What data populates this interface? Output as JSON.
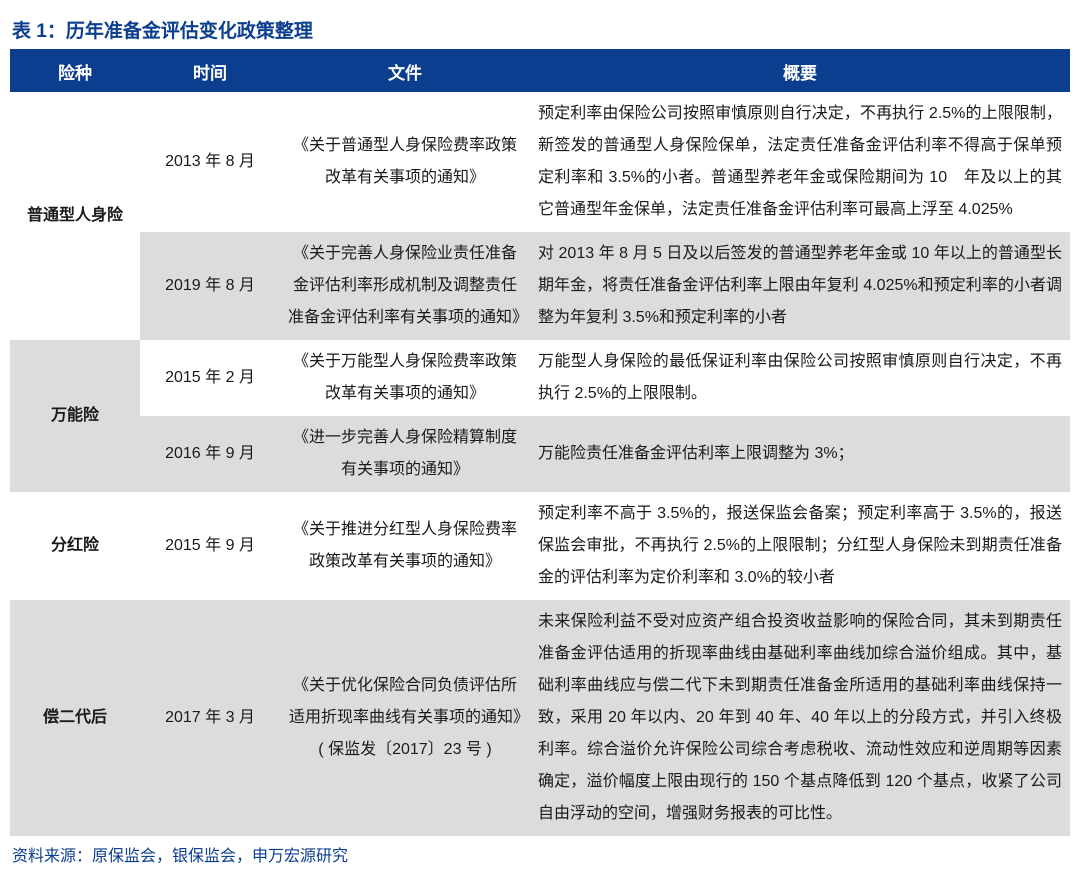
{
  "title": "表 1：历年准备金评估变化政策整理",
  "source": "资料来源：原保监会，银保监会，申万宏源研究",
  "colors": {
    "header_bg": "#0b3e8f",
    "header_fg": "#ffffff",
    "band_a_bg": "#ffffff",
    "band_b_bg": "#dcdcdc",
    "title_color": "#0b3e8f",
    "text_color": "#1a1a1a"
  },
  "columns": [
    "险种",
    "时间",
    "文件",
    "概要"
  ],
  "groups": [
    {
      "type": "普通型人身险",
      "rows": [
        {
          "band": "a",
          "time": "2013 年 8 月",
          "doc": "《关于普通型人身保险费率政策改革有关事项的通知》",
          "summary": "预定利率由保险公司按照审慎原则自行决定，不再执行 2.5%的上限限制，新签发的普通型人身保险保单，法定责任准备金评估利率不得高于保单预定利率和 3.5%的小者。普通型养老年金或保险期间为 10　年及以上的其它普通型年金保单，法定责任准备金评估利率可最高上浮至 4.025%"
        },
        {
          "band": "b",
          "time": "2019 年 8 月",
          "doc": "《关于完善人身保险业责任准备金评估利率形成机制及调整责任准备金评估利率有关事项的通知》",
          "summary": "对 2013 年 8 月 5 日及以后签发的普通型养老年金或 10 年以上的普通型长期年金，将责任准备金评估利率上限由年复利 4.025%和预定利率的小者调整为年复利 3.5%和预定利率的小者"
        }
      ]
    },
    {
      "type": "万能险",
      "rows": [
        {
          "band": "a",
          "time": "2015 年 2 月",
          "doc": "《关于万能型人身保险费率政策改革有关事项的通知》",
          "summary": "万能型人身保险的最低保证利率由保险公司按照审慎原则自行决定，不再执行 2.5%的上限限制。"
        },
        {
          "band": "b",
          "time": "2016 年 9 月",
          "doc": "《进一步完善人身保险精算制度有关事项的通知》",
          "summary": "万能险责任准备金评估利率上限调整为 3%；"
        }
      ]
    },
    {
      "type": "分红险",
      "rows": [
        {
          "band": "a",
          "time": "2015 年 9 月",
          "doc": "《关于推进分红型人身保险费率政策改革有关事项的通知》",
          "summary": "预定利率不高于 3.5%的，报送保监会备案；预定利率高于 3.5%的，报送保监会审批，不再执行 2.5%的上限限制；分红型人身保险未到期责任准备金的评估利率为定价利率和 3.0%的较小者"
        }
      ]
    },
    {
      "type": "偿二代后",
      "rows": [
        {
          "band": "b",
          "time": "2017 年 3 月",
          "doc": "《关于优化保险合同负债评估所适用折现率曲线有关事项的通知》( 保监发〔2017〕23 号 )",
          "summary": "未来保险利益不受对应资产组合投资收益影响的保险合同，其未到期责任准备金评估适用的折现率曲线由基础利率曲线加综合溢价组成。其中，基础利率曲线应与偿二代下未到期责任准备金所适用的基础利率曲线保持一致，采用 20 年以内、20 年到 40 年、40 年以上的分段方式，并引入终极利率。综合溢价允许保险公司综合考虑税收、流动性效应和逆周期等因素确定，溢价幅度上限由现行的 150 个基点降低到 120 个基点，收紧了公司自由浮动的空间，增强财务报表的可比性。"
        }
      ]
    }
  ]
}
